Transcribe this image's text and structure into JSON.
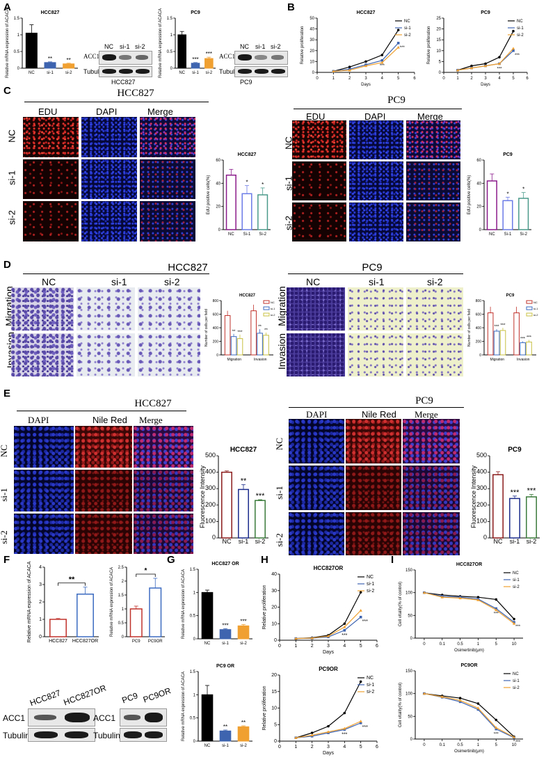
{
  "panel_letters": [
    "A",
    "B",
    "C",
    "D",
    "E",
    "F",
    "G",
    "H",
    "I"
  ],
  "colors": {
    "nc_black": "#000000",
    "si1_blue": "#3e64b0",
    "si2_orange": "#f0a030",
    "nc_purple": "#8a1a8a",
    "si1_lightblue": "#6a7ae6",
    "si2_teal": "#4a9a8a",
    "nc_darkred": "#8a1a1a",
    "si1_darkblue": "#1a2a8a",
    "si2_green": "#3a7a3a",
    "f_red": "#c0302a",
    "f_blue": "#3a6ac0"
  },
  "A": {
    "blot_hcc827": {
      "rows": [
        "ACC1",
        "Tubulin"
      ],
      "lanes": [
        "NC",
        "si-1",
        "si-2"
      ],
      "label": "HCC827"
    },
    "blot_pc9": {
      "rows": [
        "ACC1",
        "Tubulin"
      ],
      "lanes": [
        "NC",
        "si-1",
        "si-2"
      ],
      "label": "PC9"
    }
  },
  "C": {
    "hcc827_title": "HCC827",
    "pc9_title": "PC9",
    "columns": [
      "EDU",
      "DAPI",
      "Merge"
    ],
    "rows": [
      "NC",
      "si-1",
      "si-2"
    ]
  },
  "D": {
    "hcc827_title": "HCC827",
    "pc9_title": "PC9",
    "columns": [
      "NC",
      "si-1",
      "si-2"
    ],
    "hcc827_rows": [
      "Migration",
      "Invasion"
    ],
    "pc9_rows": [
      "Migration",
      "Invasion"
    ]
  },
  "E": {
    "hcc827_title": "HCC827",
    "pc9_title": "PC9",
    "columns": [
      "DAPI",
      "Nile Red",
      "Merge"
    ],
    "rows": [
      "NC",
      "si-1",
      "si-2"
    ]
  },
  "F": {
    "blot_left": {
      "lanes": [
        "HCC827",
        "HCC827OR"
      ],
      "rows": [
        "ACC1",
        "Tubulin"
      ]
    },
    "blot_right": {
      "lanes": [
        "PC9",
        "PC9OR"
      ],
      "rows": [
        "ACC1",
        "Tubulin"
      ]
    }
  },
  "chart_data": [
    {
      "id": "A1",
      "type": "bar",
      "title": "HCC827",
      "ylabel": "Relative mRNA expression of ACACA",
      "categories": [
        "NC",
        "si-1",
        "si-2"
      ],
      "values": [
        1.05,
        0.17,
        0.13
      ],
      "errors": [
        0.25,
        0.02,
        0.02
      ],
      "ylim": [
        0,
        1.5
      ],
      "yticks": [
        0,
        0.5,
        1.0,
        1.5
      ],
      "sig": [
        "",
        "**",
        "**"
      ],
      "colors": [
        "#000000",
        "#3e64b0",
        "#f0a030"
      ]
    },
    {
      "id": "A2",
      "type": "bar",
      "title": "PC9",
      "ylabel": "Relative mRNA expression of ACACA",
      "categories": [
        "NC",
        "si-1",
        "si-2"
      ],
      "values": [
        1.0,
        0.15,
        0.29
      ],
      "errors": [
        0.1,
        0.02,
        0.04
      ],
      "ylim": [
        0,
        1.5
      ],
      "yticks": [
        0,
        0.5,
        1.0,
        1.5
      ],
      "sig": [
        "",
        "***",
        "***"
      ],
      "colors": [
        "#000000",
        "#3e64b0",
        "#f0a030"
      ]
    },
    {
      "id": "B1",
      "type": "line",
      "title": "HCC827",
      "xlabel": "Days",
      "ylabel": "Relative proliferation",
      "x": [
        1,
        2,
        3,
        4,
        5
      ],
      "xlim": [
        0,
        6
      ],
      "ylim": [
        0,
        50
      ],
      "yticks": [
        0,
        10,
        20,
        30,
        40,
        50
      ],
      "series": [
        {
          "name": "NC",
          "values": [
            1,
            5,
            10,
            16,
            39
          ]
        },
        {
          "name": "si-1",
          "values": [
            1,
            3,
            7,
            11,
            27
          ]
        },
        {
          "name": "si-2",
          "values": [
            1,
            2,
            6,
            9,
            23
          ]
        }
      ],
      "sig": "***"
    },
    {
      "id": "B2",
      "type": "line",
      "title": "PC9",
      "xlabel": "Days",
      "ylabel": "Relative proliferation",
      "x": [
        1,
        2,
        3,
        4,
        5
      ],
      "xlim": [
        0,
        6
      ],
      "ylim": [
        0,
        25
      ],
      "yticks": [
        0,
        5,
        10,
        15,
        20,
        25
      ],
      "series": [
        {
          "name": "NC",
          "values": [
            1,
            3,
            4,
            7,
            19
          ]
        },
        {
          "name": "si-1",
          "values": [
            1,
            2,
            3,
            4,
            10
          ]
        },
        {
          "name": "si-2",
          "values": [
            1,
            2,
            3,
            4,
            11
          ]
        }
      ],
      "sig": "***"
    },
    {
      "id": "C1",
      "type": "bar",
      "title": "HCC827",
      "ylabel": "EdU positive cells(%)",
      "categories": [
        "NC",
        "Si-1",
        "Si-2"
      ],
      "values": [
        47,
        31,
        30
      ],
      "errors": [
        5,
        7,
        6
      ],
      "ylim": [
        0,
        60
      ],
      "yticks": [
        0,
        20,
        40,
        60
      ],
      "sig": [
        "",
        "*",
        "*"
      ],
      "colors": [
        "#8a1a8a",
        "#6a7ae6",
        "#4a9a8a"
      ],
      "hollow": true
    },
    {
      "id": "C2",
      "type": "bar",
      "title": "PC9",
      "ylabel": "EdU positive cells(%)",
      "categories": [
        "NC",
        "Si-1",
        "Si-2"
      ],
      "values": [
        42,
        25,
        27
      ],
      "errors": [
        6,
        3,
        5
      ],
      "ylim": [
        0,
        60
      ],
      "yticks": [
        0,
        20,
        40,
        60
      ],
      "sig": [
        "",
        "*",
        "*"
      ],
      "colors": [
        "#8a1a8a",
        "#6a7ae6",
        "#4a9a8a"
      ],
      "hollow": true
    },
    {
      "id": "D1",
      "type": "bar",
      "title": "HCC827",
      "ylabel": "Number of cells per field",
      "categories": [
        "Migration",
        "Invasion"
      ],
      "series": [
        {
          "name": "NC",
          "values": [
            580,
            650
          ],
          "errors": [
            70,
            90
          ]
        },
        {
          "name": "si-1",
          "values": [
            270,
            320
          ],
          "errors": [
            40,
            60
          ]
        },
        {
          "name": "si-2",
          "values": [
            240,
            290
          ],
          "errors": [
            60,
            40
          ]
        }
      ],
      "ylim": [
        0,
        800
      ],
      "yticks": [
        0,
        200,
        400,
        600,
        800
      ],
      "sig": [
        "**",
        "***",
        "**",
        "**"
      ],
      "colors": [
        "#c0302a",
        "#3a6ac0",
        "#c8c040"
      ],
      "hollow": true
    },
    {
      "id": "D2",
      "type": "bar",
      "title": "PC9",
      "ylabel": "Number of cells per field",
      "categories": [
        "Migration",
        "Invasion"
      ],
      "series": [
        {
          "name": "NC",
          "values": [
            620,
            620
          ],
          "errors": [
            90,
            90
          ]
        },
        {
          "name": "si-1",
          "values": [
            350,
            180
          ],
          "errors": [
            30,
            20
          ]
        },
        {
          "name": "si-2",
          "values": [
            360,
            190
          ],
          "errors": [
            40,
            30
          ]
        }
      ],
      "ylim": [
        0,
        800
      ],
      "yticks": [
        0,
        200,
        400,
        600,
        800
      ],
      "sig": [
        "***",
        "***",
        "***",
        "***"
      ],
      "colors": [
        "#c0302a",
        "#3a6ac0",
        "#c8c040"
      ],
      "hollow": true
    },
    {
      "id": "E1",
      "type": "bar",
      "title": "HCC827",
      "ylabel": "Fluorescence Intensity",
      "categories": [
        "NC",
        "si-1",
        "si-2"
      ],
      "values": [
        400,
        295,
        228
      ],
      "errors": [
        8,
        30,
        5
      ],
      "ylim": [
        0,
        500
      ],
      "yticks": [
        0,
        100,
        200,
        300,
        400,
        500
      ],
      "sig": [
        "",
        "**",
        "***"
      ],
      "colors": [
        "#8a1a1a",
        "#1a2a8a",
        "#3a7a3a"
      ],
      "hollow": true
    },
    {
      "id": "E2",
      "type": "bar",
      "title": "PC9",
      "ylabel": "Fluorescence Intensity",
      "categories": [
        "NC",
        "si-1",
        "si-2"
      ],
      "values": [
        385,
        240,
        250
      ],
      "errors": [
        18,
        15,
        15
      ],
      "ylim": [
        0,
        500
      ],
      "yticks": [
        0,
        100,
        200,
        300,
        400,
        500
      ],
      "sig": [
        "",
        "***",
        "***"
      ],
      "colors": [
        "#8a1a1a",
        "#1a2a8a",
        "#3a7a3a"
      ],
      "hollow": true
    },
    {
      "id": "F1",
      "type": "bar",
      "ylabel": "Relative mRNA expression of ACACA",
      "categories": [
        "HCC827",
        "HCC827OR"
      ],
      "values": [
        1.0,
        2.45
      ],
      "errors": [
        0.05,
        0.4
      ],
      "ylim": [
        0,
        4
      ],
      "yticks": [
        0,
        1,
        2,
        3,
        4
      ],
      "sig": [
        "**"
      ],
      "colors": [
        "#c0302a",
        "#3a6ac0"
      ],
      "hollow": true
    },
    {
      "id": "F2",
      "type": "bar",
      "ylabel": "Relative mRNA expression of ACACA",
      "categories": [
        "PC9",
        "PC9OR"
      ],
      "values": [
        1.0,
        1.75
      ],
      "errors": [
        0.1,
        0.35
      ],
      "ylim": [
        0,
        2.5
      ],
      "yticks": [
        0,
        0.5,
        1.0,
        1.5,
        2.0,
        2.5
      ],
      "sig": [
        "*"
      ],
      "colors": [
        "#c0302a",
        "#3a6ac0"
      ],
      "hollow": true
    },
    {
      "id": "G1",
      "type": "bar",
      "title": "HCC827 OR",
      "ylabel": "Relative mRNA expression of ACACA",
      "categories": [
        "NC",
        "si-1",
        "si-2"
      ],
      "values": [
        1.0,
        0.2,
        0.28
      ],
      "errors": [
        0.05,
        0.02,
        0.03
      ],
      "ylim": [
        0,
        1.5
      ],
      "yticks": [
        0,
        0.5,
        1.0,
        1.5
      ],
      "sig": [
        "",
        "***",
        "***"
      ],
      "colors": [
        "#000000",
        "#3e64b0",
        "#f0a030"
      ]
    },
    {
      "id": "G2",
      "type": "bar",
      "title": "PC9 OR",
      "ylabel": "Relative mRNA expression of ACACA",
      "categories": [
        "NC",
        "si-1",
        "si-2"
      ],
      "values": [
        1.0,
        0.22,
        0.31
      ],
      "errors": [
        0.2,
        0.02,
        0.02
      ],
      "ylim": [
        0,
        1.5
      ],
      "yticks": [
        0,
        0.5,
        1.0,
        1.5
      ],
      "sig": [
        "",
        "**",
        "**"
      ],
      "colors": [
        "#000000",
        "#3e64b0",
        "#f0a030"
      ]
    },
    {
      "id": "H1",
      "type": "line",
      "title": "HCC827OR",
      "xlabel": "Days",
      "ylabel": "Relative proliferation",
      "x": [
        1,
        2,
        3,
        4,
        5
      ],
      "xlim": [
        0,
        6
      ],
      "ylim": [
        0,
        40
      ],
      "yticks": [
        0,
        10,
        20,
        30,
        40
      ],
      "series": [
        {
          "name": "NC",
          "values": [
            1,
            1.5,
            3,
            10,
            29
          ]
        },
        {
          "name": "si-1",
          "values": [
            1,
            1.2,
            2,
            6,
            14
          ]
        },
        {
          "name": "si-2",
          "values": [
            1,
            1.3,
            2.5,
            8,
            18
          ]
        }
      ],
      "sig": "***"
    },
    {
      "id": "H2",
      "type": "line",
      "title": "PC9OR",
      "xlabel": "Days",
      "ylabel": "Relative proliferation",
      "x": [
        1,
        2,
        3,
        4,
        5
      ],
      "xlim": [
        0,
        6
      ],
      "ylim": [
        0,
        20
      ],
      "yticks": [
        0,
        5,
        10,
        15,
        20
      ],
      "series": [
        {
          "name": "NC",
          "values": [
            1,
            2.5,
            4.5,
            8.5,
            18
          ]
        },
        {
          "name": "si-1",
          "values": [
            1,
            1.5,
            2.5,
            3.5,
            5.5
          ]
        },
        {
          "name": "si-2",
          "values": [
            1,
            1.8,
            2.8,
            3.8,
            6
          ]
        }
      ],
      "sig": "***"
    },
    {
      "id": "I1",
      "type": "line",
      "title": "HCC827OR",
      "xlabel": "Osimertinib(μm)",
      "ylabel": "Cell vitality(% of control)",
      "x": [
        "0",
        "0.1",
        "0.5",
        "1",
        "5",
        "10"
      ],
      "ylim": [
        0,
        150
      ],
      "yticks": [
        0,
        50,
        100,
        150
      ],
      "series": [
        {
          "name": "NC",
          "values": [
            100,
            95,
            92,
            90,
            85,
            42
          ]
        },
        {
          "name": "si-1",
          "values": [
            100,
            92,
            90,
            86,
            65,
            35
          ]
        },
        {
          "name": "si-2",
          "values": [
            100,
            90,
            88,
            84,
            62,
            32
          ]
        }
      ],
      "sig": "***"
    },
    {
      "id": "I2",
      "type": "line",
      "title": "PC9OR",
      "xlabel": "Osimertinib(μm)",
      "ylabel": "Cell vitality(% of control)",
      "x": [
        "0",
        "0.1",
        "0.5",
        "1",
        "5",
        "10"
      ],
      "ylim": [
        0,
        150
      ],
      "yticks": [
        0,
        50,
        100,
        150
      ],
      "series": [
        {
          "name": "NC",
          "values": [
            100,
            95,
            90,
            78,
            42,
            5
          ]
        },
        {
          "name": "si-1",
          "values": [
            100,
            92,
            82,
            65,
            22,
            3
          ]
        },
        {
          "name": "si-2",
          "values": [
            100,
            93,
            85,
            68,
            25,
            4
          ]
        }
      ],
      "sig": "***"
    }
  ]
}
